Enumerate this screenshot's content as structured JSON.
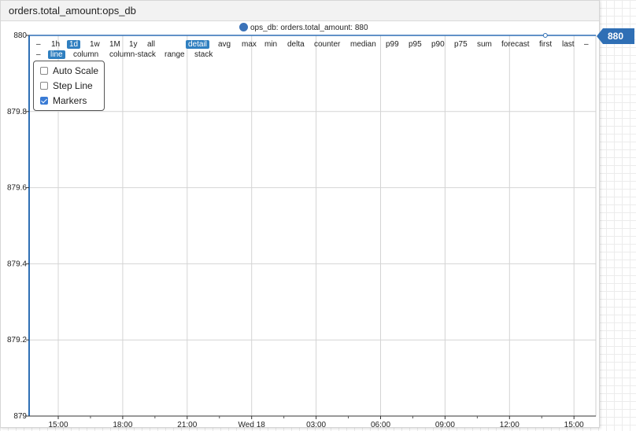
{
  "widget": {
    "title": "orders.total_amount:ops_db"
  },
  "legend": {
    "label": "ops_db: orders.total_amount: 880",
    "color": "#3a72b8"
  },
  "badge": {
    "value": "880",
    "color": "#2f6fb5"
  },
  "menu_row1": [
    {
      "label": "–",
      "active": false
    },
    {
      "label": "1h",
      "active": false
    },
    {
      "label": "1d",
      "active": true
    },
    {
      "label": "1w",
      "active": false
    },
    {
      "label": "1M",
      "active": false
    },
    {
      "label": "1y",
      "active": false
    },
    {
      "label": "all",
      "active": false
    },
    {
      "label": "detail",
      "active": true
    },
    {
      "label": "avg",
      "active": false
    },
    {
      "label": "max",
      "active": false
    },
    {
      "label": "min",
      "active": false
    },
    {
      "label": "delta",
      "active": false
    },
    {
      "label": "counter",
      "active": false
    },
    {
      "label": "median",
      "active": false
    },
    {
      "label": "p99",
      "active": false
    },
    {
      "label": "p95",
      "active": false
    },
    {
      "label": "p90",
      "active": false
    },
    {
      "label": "p75",
      "active": false
    },
    {
      "label": "sum",
      "active": false
    },
    {
      "label": "forecast",
      "active": false
    },
    {
      "label": "first",
      "active": false
    },
    {
      "label": "last",
      "active": false
    },
    {
      "label": "–",
      "active": false
    }
  ],
  "menu_row2": [
    {
      "label": "–",
      "active": false
    },
    {
      "label": "line",
      "active": true
    },
    {
      "label": "column",
      "active": false
    },
    {
      "label": "column-stack",
      "active": false
    },
    {
      "label": "range",
      "active": false
    },
    {
      "label": "stack",
      "active": false
    }
  ],
  "options": [
    {
      "label": "Auto Scale",
      "checked": false
    },
    {
      "label": "Step Line",
      "checked": false
    },
    {
      "label": "Markers",
      "checked": true
    }
  ],
  "chart_data": {
    "type": "line",
    "title": "",
    "xlabel": "",
    "ylabel": "",
    "ylim": [
      879,
      880
    ],
    "yticks": [
      "880",
      "879.8",
      "879.6",
      "879.4",
      "879.2",
      "879"
    ],
    "xticks": [
      "15:00",
      "18:00",
      "21:00",
      "Wed 18",
      "03:00",
      "06:00",
      "09:00",
      "12:00",
      "15:00"
    ],
    "grid": true,
    "legend_position": "top",
    "series": [
      {
        "name": "ops_db: orders.total_amount",
        "color": "#2f6fb5",
        "points": [
          {
            "x": "13:40",
            "y": 880
          }
        ]
      }
    ]
  }
}
